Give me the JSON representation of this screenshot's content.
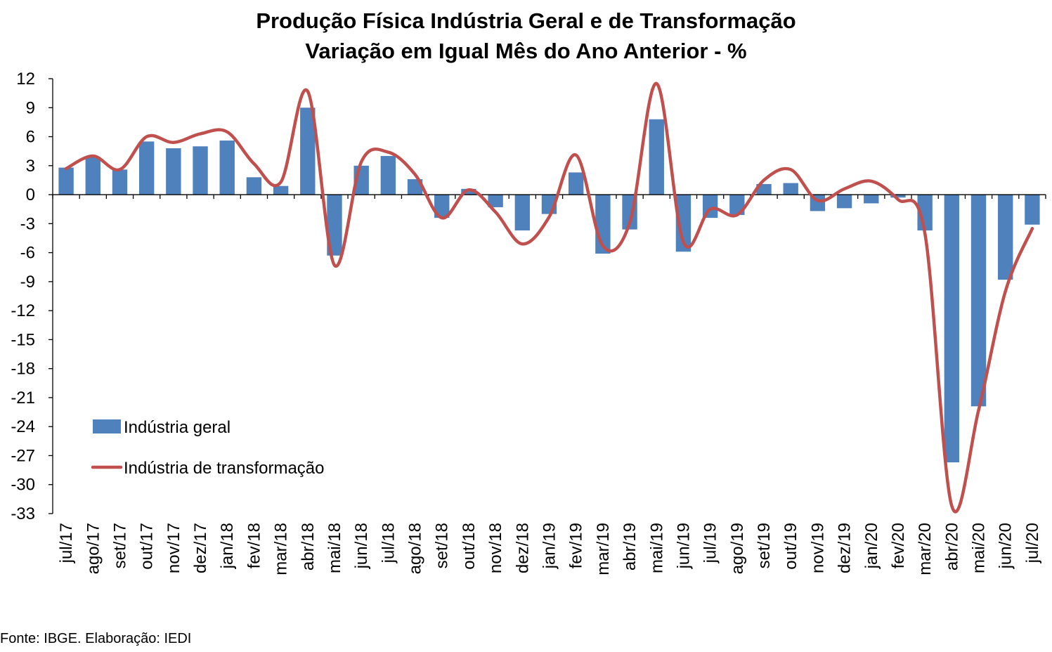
{
  "title_line1": "Produção Física Indústria Geral e de Transformação",
  "title_line2": "Variação em Igual Mês do Ano Anterior - %",
  "source": "Fonte: IBGE. Elaboração: IEDI",
  "colors": {
    "bar": "#4f81bd",
    "line": "#c0504d",
    "axis": "#000000"
  },
  "chart_data": {
    "type": "bar",
    "ylim": [
      -33,
      12
    ],
    "yticks": [
      12,
      9,
      6,
      3,
      0,
      -3,
      -6,
      -9,
      -12,
      -15,
      -18,
      -21,
      -24,
      -27,
      -30,
      -33
    ],
    "grid": false,
    "legend_position": "left-bottom",
    "categories": [
      "jul/17",
      "ago/17",
      "set/17",
      "out/17",
      "nov/17",
      "dez/17",
      "jan/18",
      "fev/18",
      "mar/18",
      "abr/18",
      "mai/18",
      "jun/18",
      "jul/18",
      "ago/18",
      "set/18",
      "out/18",
      "nov/18",
      "dez/18",
      "jan/19",
      "fev/19",
      "mar/19",
      "abr/19",
      "mai/19",
      "jun/19",
      "jul/19",
      "ago/19",
      "set/19",
      "out/19",
      "nov/19",
      "dez/19",
      "jan/20",
      "fev/20",
      "mar/20",
      "abr/20",
      "mai/20",
      "jun/20",
      "jul/20"
    ],
    "series": [
      {
        "name": "Indústria geral",
        "type": "bar",
        "values": [
          2.8,
          3.9,
          2.6,
          5.5,
          4.8,
          5.0,
          5.6,
          1.8,
          0.9,
          9.0,
          -6.3,
          3.0,
          4.0,
          1.6,
          -2.4,
          0.6,
          -1.3,
          -3.7,
          -2.0,
          2.3,
          -6.1,
          -3.6,
          7.8,
          -5.9,
          -2.4,
          -2.1,
          1.1,
          1.2,
          -1.7,
          -1.4,
          -0.9,
          -0.3,
          -3.7,
          -27.7,
          -21.9,
          -8.8,
          -3.1
        ]
      },
      {
        "name": "Indústria de transformação",
        "type": "line",
        "values": [
          2.7,
          4.0,
          2.6,
          6.0,
          5.4,
          6.3,
          6.5,
          3.2,
          1.3,
          10.7,
          -7.3,
          3.4,
          4.4,
          2.1,
          -2.4,
          0.5,
          -1.8,
          -5.1,
          -2.3,
          4.1,
          -5.3,
          -2.9,
          11.5,
          -4.9,
          -1.5,
          -2.1,
          1.5,
          2.6,
          -0.6,
          0.6,
          1.4,
          -0.5,
          -4.0,
          -32.2,
          -22.3,
          -10.0,
          -3.5
        ]
      }
    ]
  }
}
